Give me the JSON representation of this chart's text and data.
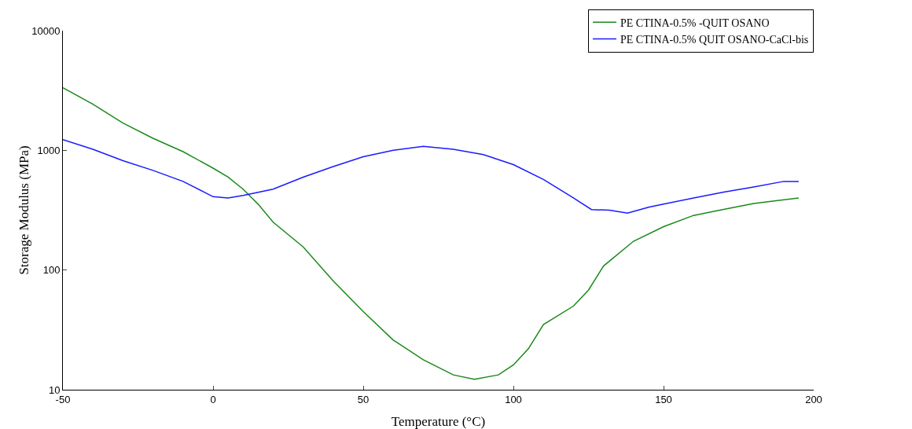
{
  "chart_data": {
    "type": "line",
    "xlabel": "Temperature (°C)",
    "ylabel": "Storage Modulus (MPa)",
    "log": "y",
    "grid": false,
    "legend": "top right",
    "marker": "none",
    "line_style": "solid",
    "xlim": [
      -50,
      200
    ],
    "xticks": [
      -50,
      0,
      50,
      100,
      150,
      200
    ],
    "ylim": [
      10,
      10000
    ],
    "yticks": [
      10,
      100,
      1000,
      10000
    ],
    "series": [
      {
        "name": "PE CTINA-0.5% -QUIT OSANO",
        "color": "#1a8a1a",
        "x": [
          -50,
          -40,
          -30,
          -20,
          -10,
          0,
          5,
          10,
          15,
          20,
          30,
          40,
          50,
          60,
          70,
          80,
          87,
          95,
          100,
          105,
          110,
          120,
          125,
          130,
          140,
          150,
          160,
          170,
          180,
          195
        ],
        "values": [
          3330,
          2430,
          1690,
          1260,
          975,
          710,
          597,
          474,
          355,
          251,
          156,
          81,
          45,
          26,
          17.8,
          13.3,
          12.2,
          13.3,
          16.1,
          22,
          35,
          50,
          68,
          108,
          174,
          230,
          286,
          321,
          360,
          400
        ]
      },
      {
        "name": "PE CTINA-0.5% QUIT OSANO-CaCl-bis",
        "color": "#1a1aff",
        "x": [
          -50,
          -40,
          -30,
          -20,
          -10,
          0,
          5,
          10,
          20,
          30,
          40,
          50,
          60,
          70,
          80,
          90,
          100,
          110,
          120,
          126,
          132,
          138,
          145,
          150,
          160,
          170,
          180,
          190,
          195
        ],
        "values": [
          1230,
          1020,
          820,
          680,
          550,
          410,
          400,
          420,
          474,
          597,
          731,
          883,
          1000,
          1080,
          1020,
          920,
          760,
          571,
          400,
          320,
          316,
          299,
          335,
          355,
          400,
          447,
          494,
          550,
          550
        ]
      }
    ]
  }
}
